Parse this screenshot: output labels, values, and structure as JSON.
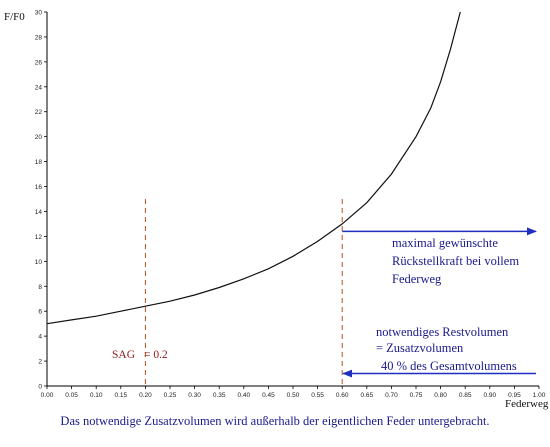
{
  "chart_data": {
    "type": "line",
    "ylabel": "F/F0",
    "xlabel": "Federweg",
    "xlim": [
      0,
      1.0
    ],
    "ylim": [
      0,
      30
    ],
    "x_ticks": [
      "0.00",
      "0.05",
      "0.10",
      "0.15",
      "0.20",
      "0.25",
      "0.30",
      "0.35",
      "0.40",
      "0.45",
      "0.50",
      "0.55",
      "0.60",
      "0.65",
      "0.70",
      "0.75",
      "0.80",
      "0.85",
      "0.90",
      "0.95",
      "1.00"
    ],
    "y_ticks": [
      "0",
      "2",
      "4",
      "6",
      "8",
      "10",
      "12",
      "14",
      "16",
      "18",
      "20",
      "22",
      "24",
      "26",
      "28",
      "30"
    ],
    "series": [
      {
        "x": [
          0.0,
          0.05,
          0.1,
          0.15,
          0.2,
          0.25,
          0.3,
          0.35,
          0.4,
          0.45,
          0.5,
          0.55,
          0.6,
          0.65,
          0.7,
          0.75,
          0.78,
          0.8,
          0.82,
          0.84
        ],
        "y": [
          5.0,
          5.3,
          5.6,
          6.0,
          6.4,
          6.8,
          7.3,
          7.9,
          8.6,
          9.4,
          10.4,
          11.6,
          13.0,
          14.7,
          17.0,
          20.0,
          22.3,
          24.4,
          27.0,
          30.0
        ]
      }
    ],
    "markers": [
      {
        "x": 0.2,
        "label": "SAG",
        "value_text": "= 0.2"
      },
      {
        "x": 0.6
      }
    ],
    "annotations": [
      {
        "id": "max",
        "lines": [
          "maximal gewünschte",
          "Rückstellkraft bei vollem",
          "Federweg"
        ]
      },
      {
        "id": "rest",
        "lines": [
          "notwendiges Restvolumen",
          "= Zusatzvolumen",
          "40 % des Gesamtvolumens"
        ]
      }
    ],
    "grid": false
  },
  "caption": "Das notwendige Zusatzvolumen wird außerhalb der eigentlichen Feder untergebracht.",
  "colors": {
    "curve": "#111111",
    "marker": "#b4501e",
    "arrow": "#1f2fbf",
    "text_blue": "#1a1a8c",
    "text_red": "#8b1a1a"
  }
}
